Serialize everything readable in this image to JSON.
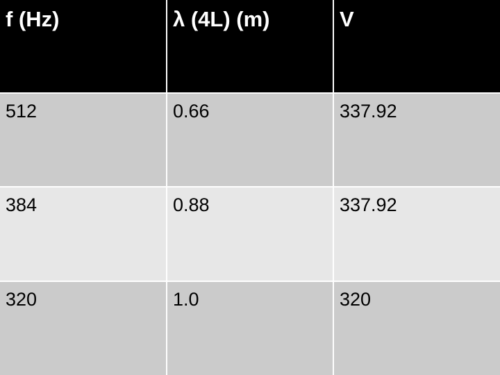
{
  "table": {
    "headers": [
      "f (Hz)",
      "λ (4L) (m)",
      "V"
    ],
    "rows": [
      [
        "512",
        "0.66",
        "337.92"
      ],
      [
        "384",
        "0.88",
        "337.92"
      ],
      [
        "320",
        "1.0",
        "320"
      ]
    ]
  },
  "colors": {
    "header_background": "#000000",
    "header_text": "#ffffff",
    "row_odd_background": "#cbcbcb",
    "row_even_background": "#e7e7e7"
  }
}
